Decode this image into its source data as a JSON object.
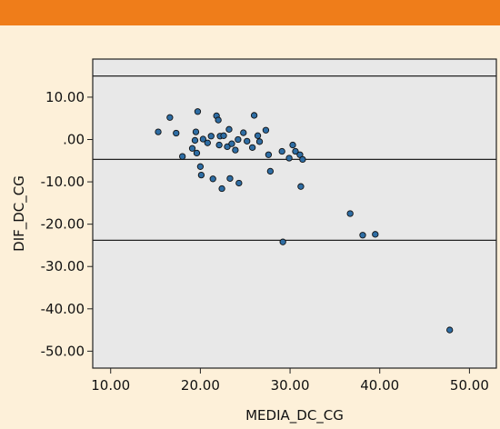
{
  "header": {
    "band_color": "#ef7d1a",
    "background_color": "#fdf0d9"
  },
  "chart_data": {
    "type": "scatter",
    "title": "",
    "xlabel": "MEDIA_DC_CG",
    "ylabel": "DIF_DC_CG",
    "xlim": [
      8,
      53
    ],
    "ylim": [
      -54,
      19
    ],
    "x_ticks": [
      10,
      20,
      30,
      40,
      50
    ],
    "x_tick_labels": [
      "10.00",
      "20.00",
      "30.00",
      "40.00",
      "50.00"
    ],
    "y_ticks": [
      10,
      0,
      -10,
      -20,
      -30,
      -40,
      -50
    ],
    "y_tick_labels": [
      "10.00",
      ".00",
      "-10.00",
      "-20.00",
      "-30.00",
      "-40.00",
      "-50.00"
    ],
    "reference_lines": [
      15.0,
      -4.7,
      -23.8
    ],
    "grid": false,
    "plot_background": "#e8e8e8",
    "point_color": "#2e6da4",
    "x": [
      15.3,
      16.6,
      17.3,
      18.0,
      19.1,
      19.4,
      19.5,
      19.6,
      19.7,
      20.0,
      20.1,
      20.3,
      20.8,
      21.2,
      21.4,
      21.8,
      22.0,
      22.1,
      22.2,
      22.4,
      22.6,
      23.0,
      23.2,
      23.3,
      23.5,
      23.9,
      24.2,
      24.3,
      24.8,
      25.2,
      25.8,
      26.0,
      26.4,
      26.6,
      27.3,
      27.6,
      27.8,
      29.1,
      29.2,
      29.9,
      30.3,
      30.6,
      31.1,
      31.2,
      31.4,
      36.7,
      38.1,
      39.5,
      47.8
    ],
    "y": [
      1.8,
      5.2,
      1.5,
      -4.0,
      -2.1,
      -0.2,
      1.8,
      -3.2,
      6.6,
      -6.4,
      -8.4,
      0.1,
      -0.8,
      0.8,
      -9.3,
      5.6,
      4.6,
      -1.3,
      0.8,
      -11.6,
      0.9,
      -1.7,
      2.4,
      -9.2,
      -1.0,
      -2.5,
      0.0,
      -10.3,
      1.6,
      -0.4,
      -1.9,
      5.7,
      0.9,
      -0.5,
      2.2,
      -3.6,
      -7.5,
      -2.8,
      -24.2,
      -4.4,
      -1.3,
      -2.8,
      -3.6,
      -11.1,
      -4.7,
      -17.5,
      -22.6,
      -22.4,
      -45.0
    ]
  }
}
